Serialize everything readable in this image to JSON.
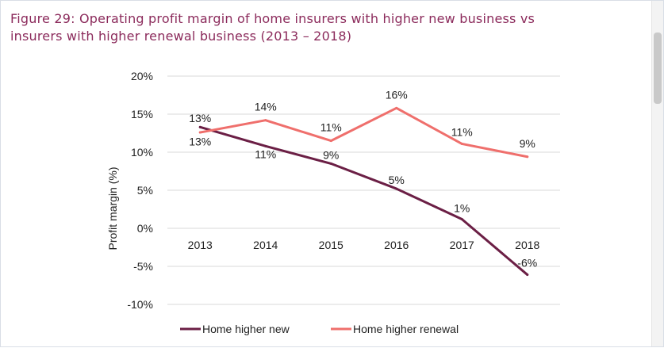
{
  "figure": {
    "title_line1": "Figure 29: Operating profit margin of home insurers with higher new business vs",
    "title_line2": "insurers with higher renewal business (2013 – 2018)"
  },
  "chart_data": {
    "type": "line",
    "title": "Figure 29: Operating profit margin of home insurers with higher new business vs insurers with higher renewal business (2013 – 2018)",
    "ylabel": "Profit margin (%)",
    "xlabel": "",
    "categories": [
      "2013",
      "2014",
      "2015",
      "2016",
      "2017",
      "2018"
    ],
    "y_ticks": [
      "20%",
      "15%",
      "10%",
      "5%",
      "0%",
      "-5%",
      "-10%"
    ],
    "y_tick_values": [
      20,
      15,
      10,
      5,
      0,
      -5,
      -10
    ],
    "ylim": [
      -10,
      20
    ],
    "grid": true,
    "legend_position": "bottom",
    "series": [
      {
        "name": "Home higher new",
        "color": "#6b1f45",
        "values": [
          13.3,
          10.8,
          8.5,
          5.2,
          1.2,
          -6.1
        ],
        "labels": [
          "13%",
          "11%",
          "9%",
          "5%",
          "1%",
          "-6%"
        ]
      },
      {
        "name": "Home higher renewal",
        "color": "#ef6f6c",
        "values": [
          12.6,
          14.2,
          11.5,
          15.8,
          11.1,
          9.4
        ],
        "labels": [
          "13%",
          "14%",
          "11%",
          "16%",
          "11%",
          "9%"
        ]
      }
    ]
  }
}
